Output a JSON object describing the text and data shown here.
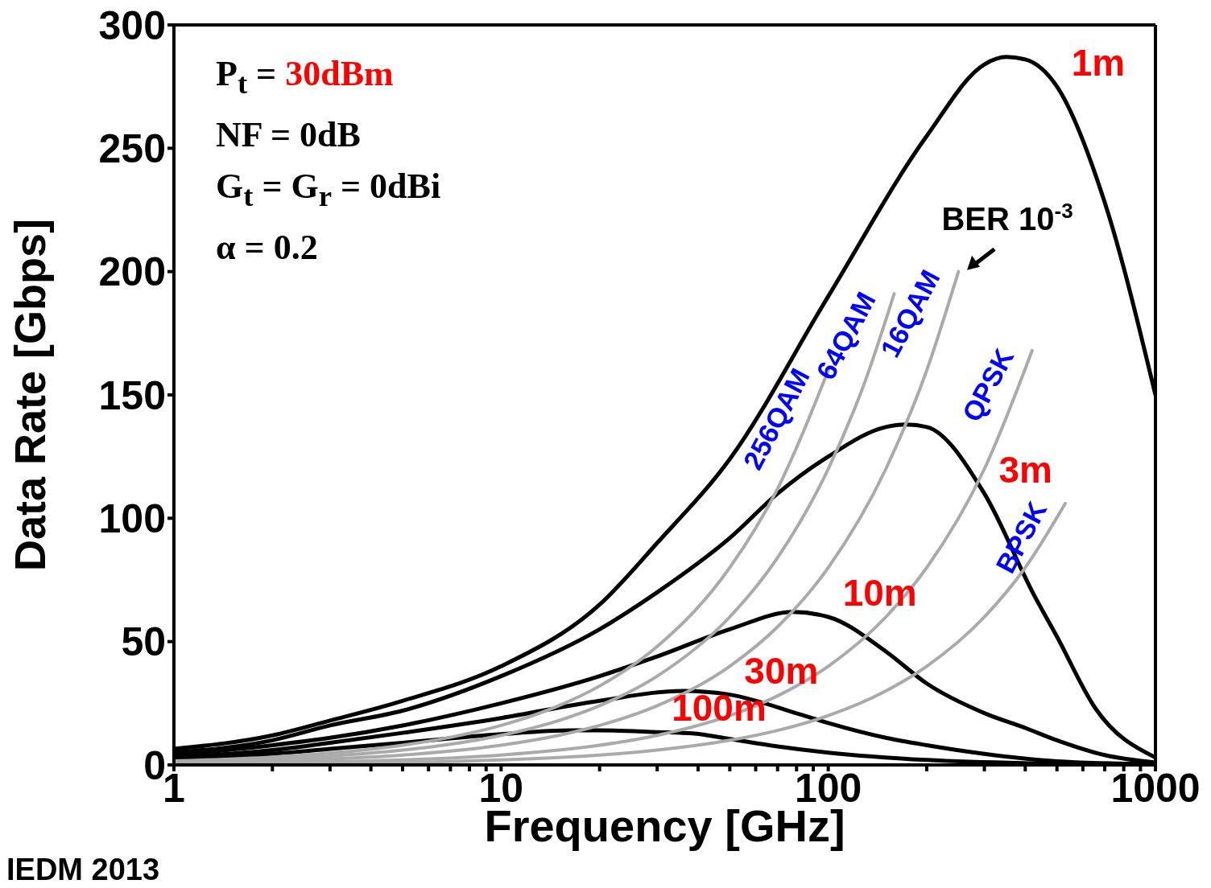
{
  "chart_data": {
    "type": "line",
    "xlabel": "Frequency [GHz]",
    "ylabel": "Data Rate [Gbps]",
    "log": "x",
    "xlim": [
      1,
      1000
    ],
    "xticks": [
      1,
      {
        "value": 2,
        "label": null
      },
      {
        "value": 3,
        "label": null
      },
      {
        "value": 4,
        "label": null
      },
      {
        "value": 5,
        "label": null
      },
      {
        "value": 6,
        "label": null
      },
      {
        "value": 7,
        "label": null
      },
      {
        "value": 8,
        "label": null
      },
      {
        "value": 9,
        "label": null
      },
      10,
      {
        "value": 20,
        "label": null
      },
      {
        "value": 30,
        "label": null
      },
      {
        "value": 40,
        "label": null
      },
      {
        "value": 50,
        "label": null
      },
      {
        "value": 60,
        "label": null
      },
      {
        "value": 70,
        "label": null
      },
      {
        "value": 80,
        "label": null
      },
      {
        "value": 90,
        "label": null
      },
      100,
      {
        "value": 200,
        "label": null
      },
      {
        "value": 300,
        "label": null
      },
      {
        "value": 400,
        "label": null
      },
      {
        "value": 500,
        "label": null
      },
      {
        "value": 600,
        "label": null
      },
      {
        "value": 700,
        "label": null
      },
      {
        "value": 800,
        "label": null
      },
      {
        "value": 900,
        "label": null
      },
      1000
    ],
    "ylim": [
      0,
      300
    ],
    "yticks": [
      0,
      50,
      100,
      150,
      200,
      250,
      300
    ],
    "marker": "none",
    "line_style": "solid",
    "series": [
      {
        "name": "1m",
        "color": "#000000",
        "x": [
          1,
          2,
          3,
          5,
          10,
          20,
          30,
          50,
          100,
          200,
          300,
          350,
          400,
          500,
          700,
          1000
        ],
        "values": [
          6.5,
          12,
          18,
          26,
          40,
          65,
          90,
          124,
          190,
          255,
          284,
          287,
          286,
          275,
          228,
          150
        ]
      },
      {
        "name": "3m",
        "color": "#000000",
        "x": [
          1,
          2,
          3,
          5,
          10,
          20,
          30,
          50,
          70,
          100,
          150,
          173,
          200,
          300,
          425,
          500,
          655,
          1000
        ],
        "values": [
          5,
          10,
          16,
          22,
          36,
          55,
          70,
          92,
          110,
          125,
          137,
          138,
          137,
          110,
          69,
          52,
          23,
          3
        ]
      },
      {
        "name": "10m",
        "color": "#000000",
        "x": [
          1,
          2,
          3,
          5,
          10,
          20,
          30,
          50,
          78,
          100,
          150,
          200,
          300,
          400,
          500,
          700,
          1000
        ],
        "values": [
          4,
          8,
          11,
          16,
          25,
          36,
          44,
          55,
          62,
          60,
          46,
          33,
          21,
          15,
          10,
          4,
          1
        ]
      },
      {
        "name": "30m",
        "color": "#000000",
        "x": [
          1,
          2,
          3,
          5,
          10,
          20,
          36,
          50,
          82,
          100,
          150,
          200,
          300,
          500,
          1000
        ],
        "values": [
          3,
          6,
          9,
          13,
          19,
          26,
          30,
          28.5,
          20.5,
          17,
          11,
          8,
          4.5,
          1.5,
          0.3
        ]
      },
      {
        "name": "100m",
        "color": "#000000",
        "x": [
          1,
          2,
          3,
          5,
          10,
          16.5,
          20,
          30,
          39,
          50,
          70,
          100,
          200,
          500,
          1000
        ],
        "values": [
          2.3,
          4.5,
          6.5,
          9,
          12.5,
          14,
          14,
          13.3,
          12.7,
          10.5,
          7.5,
          5,
          2,
          0.5,
          0.2
        ]
      },
      {
        "name": "256QAM",
        "color": "#aaaaaa",
        "x": [
          1,
          2,
          3,
          5,
          7,
          10,
          15,
          20,
          30,
          50,
          70,
          100
        ],
        "values": [
          1.6,
          3.2,
          4.8,
          8,
          11.2,
          16,
          24,
          32,
          48,
          80,
          112,
          160
        ]
      },
      {
        "name": "64QAM",
        "color": "#aaaaaa",
        "x": [
          1,
          2,
          3,
          5,
          7,
          10,
          15,
          20,
          30,
          50,
          70,
          100,
          130,
          159
        ],
        "values": [
          1.2,
          2.4,
          3.6,
          6,
          8.4,
          12,
          18,
          24,
          36,
          60,
          84,
          120,
          156,
          191
        ]
      },
      {
        "name": "16QAM",
        "color": "#aaaaaa",
        "x": [
          1,
          2,
          3,
          5,
          7,
          10,
          15,
          20,
          30,
          50,
          70,
          100,
          150,
          200,
          250
        ],
        "values": [
          0.8,
          1.6,
          2.4,
          4,
          5.6,
          8,
          12,
          16,
          24,
          40,
          56,
          80,
          120,
          160,
          200
        ]
      },
      {
        "name": "QPSK",
        "color": "#aaaaaa",
        "x": [
          1,
          2,
          3,
          5,
          7,
          10,
          15,
          20,
          30,
          50,
          70,
          100,
          150,
          200,
          300,
          420
        ],
        "values": [
          0.4,
          0.8,
          1.2,
          2,
          2.8,
          4,
          6,
          8,
          12,
          20,
          28,
          40,
          60,
          80,
          120,
          168
        ]
      },
      {
        "name": "BPSK",
        "color": "#aaaaaa",
        "x": [
          1,
          2,
          3,
          5,
          7,
          10,
          15,
          20,
          30,
          50,
          70,
          100,
          150,
          200,
          300,
          400,
          530
        ],
        "values": [
          0.2,
          0.4,
          0.6,
          1,
          1.4,
          2,
          3,
          4,
          6,
          10,
          14,
          20,
          30,
          40,
          60,
          80,
          106
        ]
      }
    ],
    "annotations": [
      "P$_{t}$ = 30dBm",
      "NF = 0dB",
      "G$_{t}$ = G$_{r}$ = 0dBi",
      "α = 0.2",
      {
        "text": "BER 10$^{-3}$",
        "x": 251,
        "y": 200
      },
      "IEDM 2013"
    ]
  }
}
